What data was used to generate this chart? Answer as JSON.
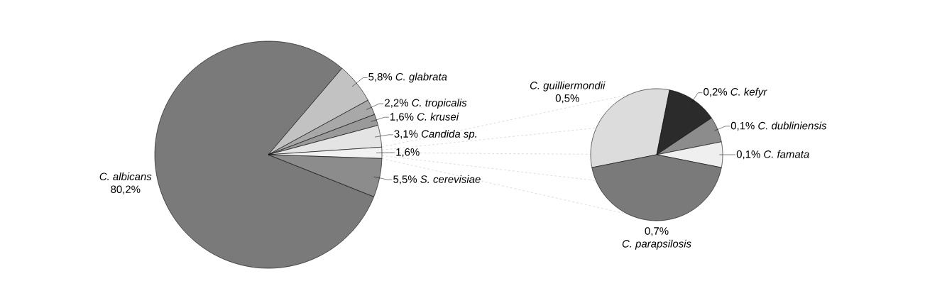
{
  "chart_data": [
    {
      "type": "pie",
      "categories": [
        "C. albicans",
        "C. glabrata",
        "C. tropicalis",
        "C. krusei",
        "Candida sp.",
        null,
        "S. cerevisiae"
      ],
      "values": [
        80.2,
        5.8,
        2.2,
        1.6,
        3.1,
        1.6,
        5.5
      ],
      "value_labels": [
        "80,2%",
        "5,8%",
        "2,2%",
        "1,6%",
        "3,1%",
        "1,6%",
        "5,5%"
      ],
      "colors": [
        "#7a7a7a",
        "#c2c2c2",
        "#a8a8a8",
        "#9a9a9a",
        "#e4e4e4",
        "#f2f2f2",
        "#8c8c8c"
      ]
    },
    {
      "type": "pie",
      "categories": [
        "C. guilliermondii",
        "C. kefyr",
        "C. dubliniensis",
        "C. famata",
        "C. parapsilosis"
      ],
      "values": [
        0.5,
        0.2,
        0.1,
        0.1,
        0.7
      ],
      "value_labels": [
        "0,5%",
        "0,2%",
        "0,1%",
        "0,1%",
        "0,7%"
      ],
      "colors": [
        "#dcdcdc",
        "#2b2b2b",
        "#8c8c8c",
        "#efefef",
        "#7a7a7a"
      ]
    }
  ]
}
